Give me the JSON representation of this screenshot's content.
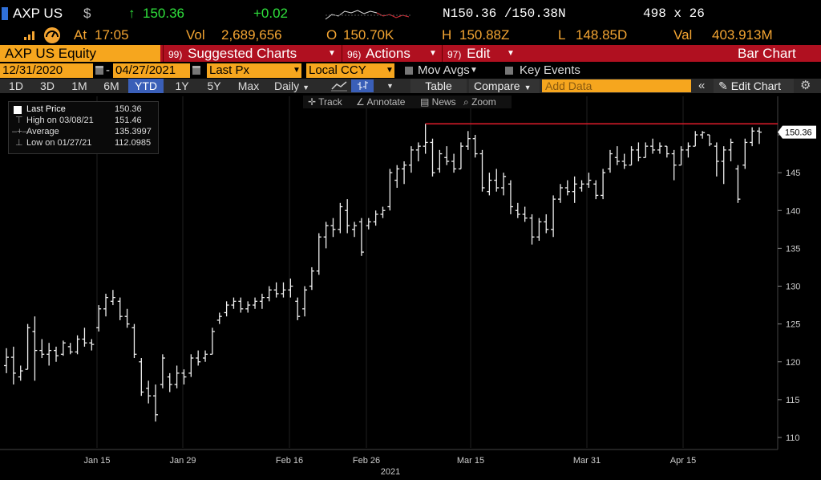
{
  "header": {
    "ticker": "AXP US",
    "currency_symbol": "$",
    "arrow": "↑",
    "last_price": "150.36",
    "change": "+0.02",
    "bid_ask": "N150.36 /150.38N",
    "size": "498 x 26",
    "time_label": "At",
    "time": "17:05",
    "vol_label": "Vol",
    "volume": "2,689,656",
    "open_label": "O",
    "open": "150.70K",
    "high_label": "H",
    "high": "150.88Z",
    "low_label": "L",
    "low": "148.85D",
    "val_label": "Val",
    "value": "403.913M"
  },
  "cmdbar": {
    "security": "AXP US Equity",
    "suggested_num": "99)",
    "suggested": "Suggested Charts",
    "actions_num": "96)",
    "actions": "Actions",
    "edit_num": "97)",
    "edit": "Edit",
    "chart_type": "Bar Chart"
  },
  "dates": {
    "start": "12/31/2020",
    "dash": "-",
    "end": "04/27/2021",
    "field": "Last Px",
    "ccy": "Local CCY",
    "mov_avgs": "Mov Avgs",
    "key_events": "Key Events"
  },
  "periods": [
    "1D",
    "3D",
    "1M",
    "6M",
    "YTD",
    "1Y",
    "5Y",
    "Max"
  ],
  "selected_period": "YTD",
  "toolbar": {
    "frequency": "Daily",
    "table": "Table",
    "compare": "Compare",
    "add_data_placeholder": "Add Data",
    "edit_chart": "Edit Chart"
  },
  "tools": [
    "Track",
    "Annotate",
    "News",
    "Zoom"
  ],
  "legend": [
    {
      "label": "Last Price",
      "value": "150.36"
    },
    {
      "label": "High on 03/08/21",
      "value": "151.46"
    },
    {
      "label": "Average",
      "value": "135.3997"
    },
    {
      "label": "Low on 01/27/21",
      "value": "112.0985"
    }
  ],
  "chart_data": {
    "type": "bar",
    "title": "",
    "x_year_label": "2021",
    "x_ticks": [
      "Jan 15",
      "Jan 29",
      "Feb 16",
      "Feb 26",
      "Mar 15",
      "Mar 31",
      "Apr 15"
    ],
    "y_ticks": [
      110,
      115,
      120,
      125,
      130,
      135,
      140,
      145,
      150
    ],
    "ylim": [
      108,
      157
    ],
    "last_price_label": "150.36",
    "high_line": 151.46,
    "bars": [
      {
        "h": 121.8,
        "l": 118.5,
        "o": 119.5,
        "c": 120.6
      },
      {
        "h": 122.0,
        "l": 117.0,
        "o": 120.6,
        "c": 118.5
      },
      {
        "h": 119.5,
        "l": 117.5,
        "o": 118.0,
        "c": 118.8
      },
      {
        "h": 125.0,
        "l": 119.0,
        "o": 119.0,
        "c": 124.5
      },
      {
        "h": 126.0,
        "l": 117.5,
        "o": 124.0,
        "c": 121.5
      },
      {
        "h": 123.0,
        "l": 120.5,
        "o": 121.5,
        "c": 121.0
      },
      {
        "h": 122.5,
        "l": 119.5,
        "o": 121.0,
        "c": 121.5
      },
      {
        "h": 122.0,
        "l": 120.0,
        "o": 121.5,
        "c": 120.8
      },
      {
        "h": 122.8,
        "l": 120.8,
        "o": 121.0,
        "c": 122.5
      },
      {
        "h": 122.5,
        "l": 121.0,
        "o": 122.0,
        "c": 121.3
      },
      {
        "h": 123.5,
        "l": 121.0,
        "o": 121.3,
        "c": 123.0
      },
      {
        "h": 124.5,
        "l": 122.0,
        "o": 123.0,
        "c": 122.5
      },
      {
        "h": 123.0,
        "l": 121.5,
        "o": 122.5,
        "c": 122.3
      },
      {
        "h": 127.5,
        "l": 124.0,
        "o": 124.5,
        "c": 127.0
      },
      {
        "h": 129.0,
        "l": 126.0,
        "o": 127.0,
        "c": 128.5
      },
      {
        "h": 129.5,
        "l": 127.5,
        "o": 128.0,
        "c": 128.5
      },
      {
        "h": 128.5,
        "l": 125.5,
        "o": 128.0,
        "c": 126.0
      },
      {
        "h": 127.0,
        "l": 124.5,
        "o": 126.0,
        "c": 125.0
      },
      {
        "h": 125.0,
        "l": 120.5,
        "o": 124.5,
        "c": 121.0
      },
      {
        "h": 120.5,
        "l": 115.5,
        "o": 120.0,
        "c": 116.0
      },
      {
        "h": 117.5,
        "l": 114.5,
        "o": 116.5,
        "c": 115.5
      },
      {
        "h": 117.0,
        "l": 112.1,
        "o": 115.5,
        "c": 113.0
      },
      {
        "h": 121.0,
        "l": 116.5,
        "o": 117.0,
        "c": 120.5
      },
      {
        "h": 118.5,
        "l": 116.0,
        "o": 118.0,
        "c": 117.0
      },
      {
        "h": 119.5,
        "l": 116.5,
        "o": 117.0,
        "c": 118.5
      },
      {
        "h": 119.0,
        "l": 117.0,
        "o": 118.5,
        "c": 118.0
      },
      {
        "h": 121.0,
        "l": 118.0,
        "o": 118.5,
        "c": 120.5
      },
      {
        "h": 121.5,
        "l": 119.5,
        "o": 120.5,
        "c": 120.0
      },
      {
        "h": 121.5,
        "l": 120.0,
        "o": 120.5,
        "c": 121.0
      },
      {
        "h": 124.5,
        "l": 121.0,
        "o": 121.0,
        "c": 124.0
      },
      {
        "h": 126.5,
        "l": 125.0,
        "o": 125.5,
        "c": 126.0
      },
      {
        "h": 128.0,
        "l": 126.0,
        "o": 126.5,
        "c": 127.5
      },
      {
        "h": 128.5,
        "l": 127.0,
        "o": 127.5,
        "c": 128.0
      },
      {
        "h": 128.5,
        "l": 126.5,
        "o": 128.0,
        "c": 127.0
      },
      {
        "h": 128.0,
        "l": 126.5,
        "o": 127.0,
        "c": 127.5
      },
      {
        "h": 128.5,
        "l": 127.0,
        "o": 127.5,
        "c": 128.0
      },
      {
        "h": 129.0,
        "l": 127.0,
        "o": 128.0,
        "c": 128.5
      },
      {
        "h": 130.0,
        "l": 128.0,
        "o": 128.5,
        "c": 129.5
      },
      {
        "h": 130.5,
        "l": 128.5,
        "o": 129.5,
        "c": 129.0
      },
      {
        "h": 130.5,
        "l": 128.5,
        "o": 129.0,
        "c": 129.5
      },
      {
        "h": 131.0,
        "l": 128.5,
        "o": 129.5,
        "c": 130.0
      },
      {
        "h": 128.5,
        "l": 125.5,
        "o": 128.0,
        "c": 126.0
      },
      {
        "h": 130.0,
        "l": 126.0,
        "o": 127.0,
        "c": 129.5
      },
      {
        "h": 132.5,
        "l": 129.5,
        "o": 130.0,
        "c": 132.0
      },
      {
        "h": 137.0,
        "l": 131.5,
        "o": 132.0,
        "c": 136.5
      },
      {
        "h": 138.5,
        "l": 135.0,
        "o": 136.5,
        "c": 138.0
      },
      {
        "h": 139.0,
        "l": 136.5,
        "o": 138.0,
        "c": 137.5
      },
      {
        "h": 141.0,
        "l": 137.0,
        "o": 137.5,
        "c": 140.5
      },
      {
        "h": 141.5,
        "l": 137.0,
        "o": 140.0,
        "c": 138.0
      },
      {
        "h": 138.5,
        "l": 136.5,
        "o": 137.5,
        "c": 138.0
      },
      {
        "h": 139.0,
        "l": 134.0,
        "o": 138.5,
        "c": 134.5
      },
      {
        "h": 139.0,
        "l": 137.5,
        "o": 138.0,
        "c": 138.5
      },
      {
        "h": 140.0,
        "l": 138.0,
        "o": 138.5,
        "c": 139.5
      },
      {
        "h": 140.5,
        "l": 139.0,
        "o": 139.5,
        "c": 140.0
      },
      {
        "h": 145.5,
        "l": 140.0,
        "o": 140.5,
        "c": 145.0
      },
      {
        "h": 146.0,
        "l": 143.0,
        "o": 144.0,
        "c": 145.5
      },
      {
        "h": 146.5,
        "l": 143.5,
        "o": 145.5,
        "c": 146.0
      },
      {
        "h": 148.5,
        "l": 145.0,
        "o": 146.0,
        "c": 148.0
      },
      {
        "h": 149.0,
        "l": 146.5,
        "o": 148.0,
        "c": 148.5
      },
      {
        "h": 151.46,
        "l": 147.5,
        "o": 148.5,
        "c": 149.0
      },
      {
        "h": 149.5,
        "l": 144.5,
        "o": 149.0,
        "c": 145.0
      },
      {
        "h": 148.0,
        "l": 145.0,
        "o": 145.5,
        "c": 147.5
      },
      {
        "h": 148.5,
        "l": 146.0,
        "o": 147.0,
        "c": 146.5
      },
      {
        "h": 147.5,
        "l": 145.0,
        "o": 146.5,
        "c": 145.5
      },
      {
        "h": 149.0,
        "l": 145.5,
        "o": 145.5,
        "c": 148.5
      },
      {
        "h": 150.5,
        "l": 148.0,
        "o": 148.5,
        "c": 149.5
      },
      {
        "h": 150.0,
        "l": 147.0,
        "o": 149.5,
        "c": 147.5
      },
      {
        "h": 148.0,
        "l": 142.5,
        "o": 147.5,
        "c": 143.0
      },
      {
        "h": 145.0,
        "l": 142.0,
        "o": 142.5,
        "c": 144.0
      },
      {
        "h": 145.5,
        "l": 142.5,
        "o": 144.0,
        "c": 143.0
      },
      {
        "h": 145.0,
        "l": 142.0,
        "o": 143.0,
        "c": 144.5
      },
      {
        "h": 144.0,
        "l": 139.5,
        "o": 143.5,
        "c": 140.5
      },
      {
        "h": 141.0,
        "l": 139.0,
        "o": 140.0,
        "c": 139.5
      },
      {
        "h": 140.5,
        "l": 138.5,
        "o": 139.5,
        "c": 139.0
      },
      {
        "h": 139.5,
        "l": 135.5,
        "o": 139.0,
        "c": 136.5
      },
      {
        "h": 139.0,
        "l": 136.0,
        "o": 136.5,
        "c": 138.5
      },
      {
        "h": 139.5,
        "l": 137.0,
        "o": 138.5,
        "c": 137.5
      },
      {
        "h": 142.0,
        "l": 136.5,
        "o": 137.5,
        "c": 141.5
      },
      {
        "h": 143.5,
        "l": 141.0,
        "o": 141.5,
        "c": 143.0
      },
      {
        "h": 144.0,
        "l": 142.0,
        "o": 143.0,
        "c": 142.5
      },
      {
        "h": 144.5,
        "l": 141.0,
        "o": 142.5,
        "c": 143.5
      },
      {
        "h": 144.0,
        "l": 142.5,
        "o": 143.0,
        "c": 143.5
      },
      {
        "h": 145.0,
        "l": 143.0,
        "o": 143.5,
        "c": 144.0
      },
      {
        "h": 144.0,
        "l": 141.5,
        "o": 143.5,
        "c": 142.0
      },
      {
        "h": 145.5,
        "l": 141.5,
        "o": 142.0,
        "c": 145.0
      },
      {
        "h": 148.0,
        "l": 145.0,
        "o": 145.5,
        "c": 147.5
      },
      {
        "h": 148.5,
        "l": 146.0,
        "o": 147.0,
        "c": 146.5
      },
      {
        "h": 147.5,
        "l": 145.5,
        "o": 146.5,
        "c": 146.0
      },
      {
        "h": 148.5,
        "l": 146.0,
        "o": 146.0,
        "c": 148.0
      },
      {
        "h": 149.0,
        "l": 146.5,
        "o": 148.0,
        "c": 147.0
      },
      {
        "h": 149.0,
        "l": 147.0,
        "o": 147.0,
        "c": 148.5
      },
      {
        "h": 149.5,
        "l": 147.5,
        "o": 148.5,
        "c": 148.0
      },
      {
        "h": 149.0,
        "l": 147.5,
        "o": 148.0,
        "c": 148.5
      },
      {
        "h": 148.5,
        "l": 147.0,
        "o": 148.5,
        "c": 147.5
      },
      {
        "h": 148.0,
        "l": 144.0,
        "o": 147.5,
        "c": 146.0
      },
      {
        "h": 148.5,
        "l": 146.0,
        "o": 146.0,
        "c": 148.0
      },
      {
        "h": 149.0,
        "l": 147.0,
        "o": 148.0,
        "c": 148.5
      },
      {
        "h": 150.5,
        "l": 148.5,
        "o": 148.5,
        "c": 150.0
      },
      {
        "h": 150.5,
        "l": 149.5,
        "o": 150.0,
        "c": 150.3
      },
      {
        "h": 150.0,
        "l": 148.5,
        "o": 150.0,
        "c": 148.8
      },
      {
        "h": 149.0,
        "l": 144.5,
        "o": 148.5,
        "c": 146.5
      },
      {
        "h": 148.5,
        "l": 143.5,
        "o": 146.5,
        "c": 148.0
      },
      {
        "h": 149.5,
        "l": 146.5,
        "o": 148.0,
        "c": 149.0
      },
      {
        "h": 146.0,
        "l": 141.0,
        "o": 145.5,
        "c": 141.5
      },
      {
        "h": 149.5,
        "l": 145.5,
        "o": 146.0,
        "c": 149.0
      },
      {
        "h": 151.0,
        "l": 148.5,
        "o": 149.0,
        "c": 150.5
      },
      {
        "h": 151.0,
        "l": 148.8,
        "o": 150.5,
        "c": 150.36
      }
    ]
  }
}
